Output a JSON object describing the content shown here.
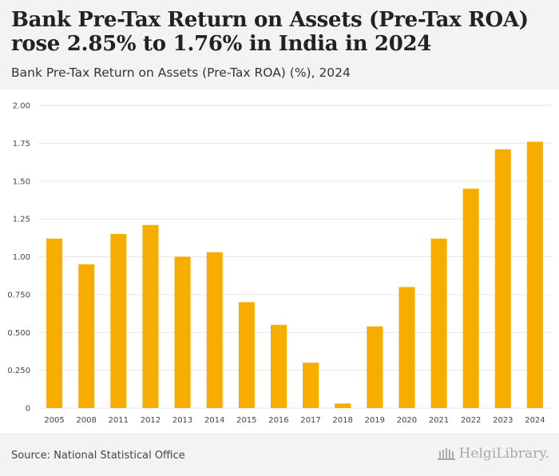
{
  "header": {
    "title": "Bank Pre-Tax Return on Assets (Pre-Tax ROA) rose 2.85% to 1.76% in India in 2024",
    "subtitle": "Bank Pre-Tax Return on Assets (Pre-Tax ROA) (%), 2024"
  },
  "footer": {
    "source": "Source: National Statistical Office",
    "logo_text": "HelgiLibrary."
  },
  "colors": {
    "bar": "#f7ad00",
    "grid": "#e6e6e6",
    "background": "#f3f3f3"
  },
  "chart_data": {
    "type": "bar",
    "title": "Bank Pre-Tax Return on Assets (Pre-Tax ROA) (%), 2024",
    "xlabel": "",
    "ylabel": "",
    "categories": [
      "2005",
      "2008",
      "2011",
      "2012",
      "2013",
      "2014",
      "2015",
      "2016",
      "2017",
      "2018",
      "2019",
      "2020",
      "2021",
      "2022",
      "2023",
      "2024"
    ],
    "values": [
      1.12,
      0.95,
      1.15,
      1.21,
      1.0,
      1.03,
      0.7,
      0.55,
      0.3,
      0.03,
      0.54,
      0.8,
      1.12,
      1.45,
      1.71,
      1.76
    ],
    "ylim": [
      0,
      2.0
    ],
    "yticks": [
      0,
      0.25,
      0.5,
      0.75,
      1.0,
      1.25,
      1.5,
      1.75,
      2.0
    ],
    "ytick_labels": [
      "0",
      "0.250",
      "0.500",
      "0.750",
      "1.00",
      "1.25",
      "1.50",
      "1.75",
      "2.00"
    ],
    "grid": true
  }
}
